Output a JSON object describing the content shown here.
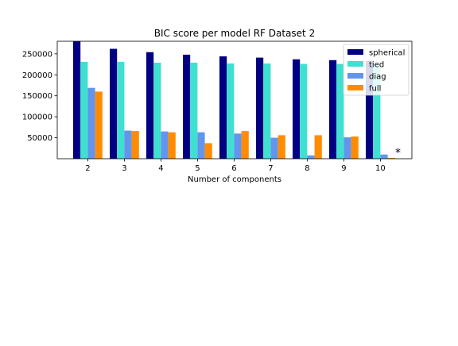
{
  "chart_data": {
    "type": "bar",
    "title": "BIC score per model RF Dataset 2",
    "xlabel": "Number of components",
    "ylabel": "",
    "ylim": [
      0,
      280000
    ],
    "yticks": [
      50000,
      100000,
      150000,
      200000,
      250000
    ],
    "yticklabels": [
      "50000",
      "100000",
      "150000",
      "200000",
      "250000"
    ],
    "categories": [
      "2",
      "3",
      "4",
      "5",
      "6",
      "7",
      "8",
      "9",
      "10"
    ],
    "series": [
      {
        "name": "spherical",
        "color": "#000080",
        "values": [
          282000,
          262000,
          254000,
          248000,
          244000,
          241000,
          237000,
          235000,
          233000
        ]
      },
      {
        "name": "tied",
        "color": "#40e0d0",
        "values": [
          231000,
          231000,
          229000,
          229000,
          227000,
          227000,
          226000,
          226000,
          225000
        ]
      },
      {
        "name": "diag",
        "color": "#6495ed",
        "values": [
          169000,
          67000,
          65000,
          63000,
          60000,
          50000,
          8000,
          51000,
          10000
        ]
      },
      {
        "name": "full",
        "color": "#ff8c00",
        "values": [
          160000,
          66000,
          63000,
          37000,
          66000,
          56000,
          56000,
          53000,
          2000
        ]
      }
    ],
    "legend": "top-right",
    "grid": false,
    "annotation": "*"
  }
}
